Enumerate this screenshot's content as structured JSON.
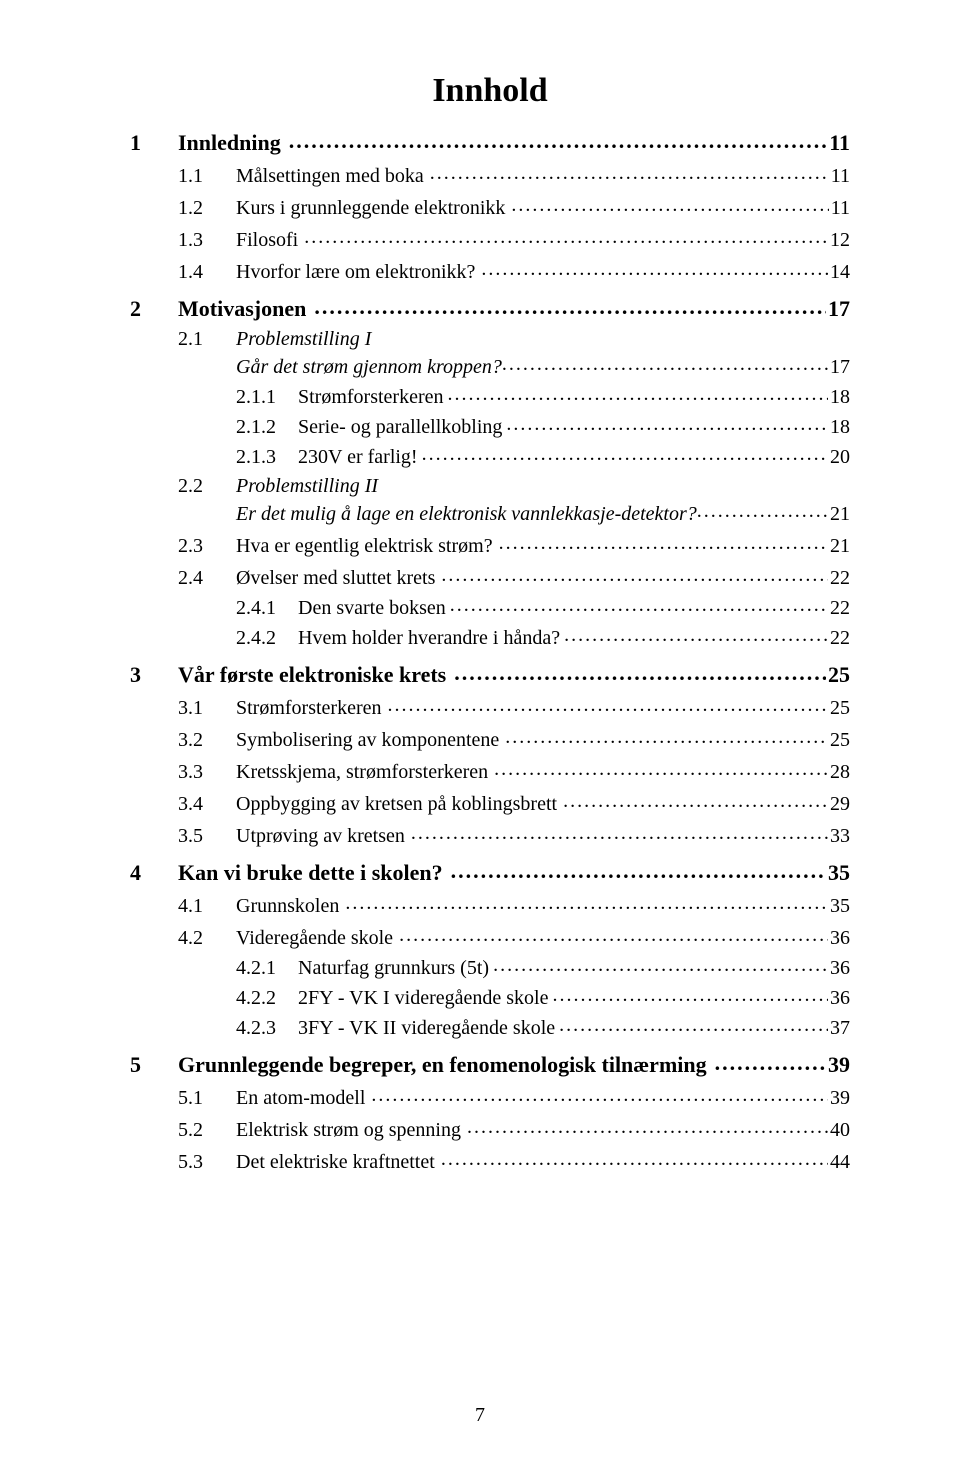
{
  "title": "Innhold",
  "page_number": "7",
  "colors": {
    "text": "#000000",
    "background": "#ffffff"
  },
  "typography": {
    "family": "Times New Roman",
    "title_size_pt": 26,
    "lvl1_size_pt": 16,
    "lvl2_size_pt": 15,
    "lvl3_size_pt": 15
  },
  "toc": [
    {
      "level": 1,
      "num": "1",
      "label": "Innledning",
      "page": "11"
    },
    {
      "level": 2,
      "num": "1.1",
      "label": "Målsettingen med boka",
      "page": "11"
    },
    {
      "level": 2,
      "num": "1.2",
      "label": "Kurs i grunnleggende elektronikk",
      "page": "11"
    },
    {
      "level": 2,
      "num": "1.3",
      "label": "Filosofi",
      "page": "12"
    },
    {
      "level": 2,
      "num": "1.4",
      "label": "Hvorfor lære om elektronikk?",
      "page": "14"
    },
    {
      "level": 1,
      "num": "2",
      "label": "Motivasjonen",
      "page": "17"
    },
    {
      "level": 2,
      "num": "2.1",
      "label": "Problemstilling I",
      "italic": true,
      "cont": "Går det strøm gjennom kroppen?",
      "page": "17"
    },
    {
      "level": 3,
      "num": "2.1.1",
      "label": "Strømforsterkeren",
      "page": "18"
    },
    {
      "level": 3,
      "num": "2.1.2",
      "label": "Serie- og parallellkobling",
      "page": "18"
    },
    {
      "level": 3,
      "num": "2.1.3",
      "label": "230V er farlig!",
      "page": "20"
    },
    {
      "level": 2,
      "num": "2.2",
      "label": "Problemstilling II",
      "italic": true,
      "cont": "Er det mulig å lage en elektronisk vannlekkasje-detektor?",
      "page": "21"
    },
    {
      "level": 2,
      "num": "2.3",
      "label": "Hva er egentlig elektrisk strøm?",
      "page": "21"
    },
    {
      "level": 2,
      "num": "2.4",
      "label": "Øvelser med sluttet krets",
      "page": "22"
    },
    {
      "level": 3,
      "num": "2.4.1",
      "label": "Den svarte boksen",
      "page": "22"
    },
    {
      "level": 3,
      "num": "2.4.2",
      "label": "Hvem holder hverandre i hånda?",
      "page": "22"
    },
    {
      "level": 1,
      "num": "3",
      "label": "Vår første elektroniske krets",
      "page": "25"
    },
    {
      "level": 2,
      "num": "3.1",
      "label": "Strømforsterkeren",
      "page": "25"
    },
    {
      "level": 2,
      "num": "3.2",
      "label": "Symbolisering av komponentene",
      "page": "25"
    },
    {
      "level": 2,
      "num": "3.3",
      "label": "Kretsskjema, strømforsterkeren",
      "page": "28"
    },
    {
      "level": 2,
      "num": "3.4",
      "label": "Oppbygging av kretsen på koblingsbrett",
      "page": "29"
    },
    {
      "level": 2,
      "num": "3.5",
      "label": "Utprøving av kretsen",
      "page": "33"
    },
    {
      "level": 1,
      "num": "4",
      "label": "Kan vi bruke dette i skolen?",
      "page": "35"
    },
    {
      "level": 2,
      "num": "4.1",
      "label": "Grunnskolen",
      "page": "35"
    },
    {
      "level": 2,
      "num": "4.2",
      "label": "Videregående skole",
      "page": "36"
    },
    {
      "level": 3,
      "num": "4.2.1",
      "label": "Naturfag grunnkurs (5t)",
      "page": "36"
    },
    {
      "level": 3,
      "num": "4.2.2",
      "label": "2FY - VK I videregående skole",
      "page": "36"
    },
    {
      "level": 3,
      "num": "4.2.3",
      "label": "3FY - VK II videregående skole",
      "page": "37"
    },
    {
      "level": 1,
      "num": "5",
      "label": "Grunnleggende begreper, en fenomenologisk tilnærming",
      "page": "39"
    },
    {
      "level": 2,
      "num": "5.1",
      "label": "En atom-modell",
      "page": "39"
    },
    {
      "level": 2,
      "num": "5.2",
      "label": "Elektrisk strøm og spenning",
      "page": "40"
    },
    {
      "level": 2,
      "num": "5.3",
      "label": "Det elektriske kraftnettet",
      "page": "44"
    }
  ]
}
